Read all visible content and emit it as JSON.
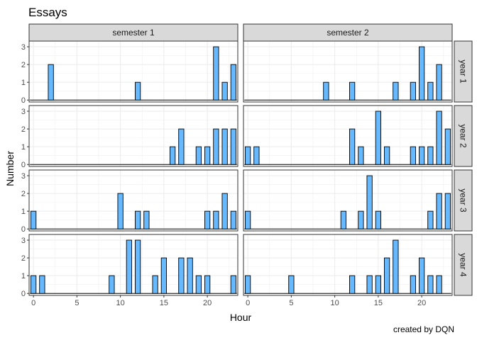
{
  "chart_data": {
    "type": "bar",
    "title": "Essays",
    "caption": "created by DQN",
    "xlabel": "Hour",
    "ylabel": "Number",
    "xlim": [
      -0.5,
      23.5
    ],
    "ylim": [
      0,
      3
    ],
    "x_ticks": [
      0,
      5,
      10,
      15,
      20
    ],
    "y_ticks": [
      0,
      1,
      2,
      3
    ],
    "grid": true,
    "bar_fill": "#66b8ff",
    "bar_outline": "#000000",
    "strip_fill": "#d9d9d9",
    "columns": [
      "semester 1",
      "semester 2"
    ],
    "rows": [
      "year 1",
      "year 2",
      "year 3",
      "year 4"
    ],
    "panels": [
      {
        "row": "year 1",
        "col": "semester 1",
        "points": [
          [
            2,
            2
          ],
          [
            12,
            1
          ],
          [
            21,
            3
          ],
          [
            22,
            1
          ],
          [
            23,
            2
          ]
        ]
      },
      {
        "row": "year 1",
        "col": "semester 2",
        "points": [
          [
            9,
            1
          ],
          [
            12,
            1
          ],
          [
            17,
            1
          ],
          [
            19,
            1
          ],
          [
            20,
            3
          ],
          [
            21,
            1
          ],
          [
            22,
            2
          ]
        ]
      },
      {
        "row": "year 2",
        "col": "semester 1",
        "points": [
          [
            16,
            1
          ],
          [
            17,
            2
          ],
          [
            19,
            1
          ],
          [
            20,
            1
          ],
          [
            21,
            2
          ],
          [
            22,
            2
          ],
          [
            23,
            2
          ]
        ]
      },
      {
        "row": "year 2",
        "col": "semester 2",
        "points": [
          [
            0,
            1
          ],
          [
            1,
            1
          ],
          [
            12,
            2
          ],
          [
            13,
            1
          ],
          [
            15,
            3
          ],
          [
            16,
            1
          ],
          [
            19,
            1
          ],
          [
            20,
            1
          ],
          [
            21,
            1
          ],
          [
            22,
            3
          ],
          [
            23,
            2
          ]
        ]
      },
      {
        "row": "year 3",
        "col": "semester 1",
        "points": [
          [
            0,
            1
          ],
          [
            10,
            2
          ],
          [
            12,
            1
          ],
          [
            13,
            1
          ],
          [
            20,
            1
          ],
          [
            21,
            1
          ],
          [
            22,
            2
          ],
          [
            23,
            1
          ]
        ]
      },
      {
        "row": "year 3",
        "col": "semester 2",
        "points": [
          [
            0,
            1
          ],
          [
            11,
            1
          ],
          [
            13,
            1
          ],
          [
            14,
            3
          ],
          [
            15,
            1
          ],
          [
            21,
            1
          ],
          [
            22,
            2
          ],
          [
            23,
            2
          ]
        ]
      },
      {
        "row": "year 4",
        "col": "semester 1",
        "points": [
          [
            0,
            1
          ],
          [
            1,
            1
          ],
          [
            9,
            1
          ],
          [
            11,
            3
          ],
          [
            12,
            3
          ],
          [
            14,
            1
          ],
          [
            15,
            2
          ],
          [
            17,
            2
          ],
          [
            18,
            2
          ],
          [
            19,
            1
          ],
          [
            20,
            1
          ],
          [
            23,
            1
          ]
        ]
      },
      {
        "row": "year 4",
        "col": "semester 2",
        "points": [
          [
            0,
            1
          ],
          [
            5,
            1
          ],
          [
            12,
            1
          ],
          [
            14,
            1
          ],
          [
            15,
            1
          ],
          [
            16,
            2
          ],
          [
            17,
            3
          ],
          [
            19,
            1
          ],
          [
            20,
            2
          ],
          [
            21,
            1
          ],
          [
            22,
            1
          ]
        ]
      }
    ]
  }
}
